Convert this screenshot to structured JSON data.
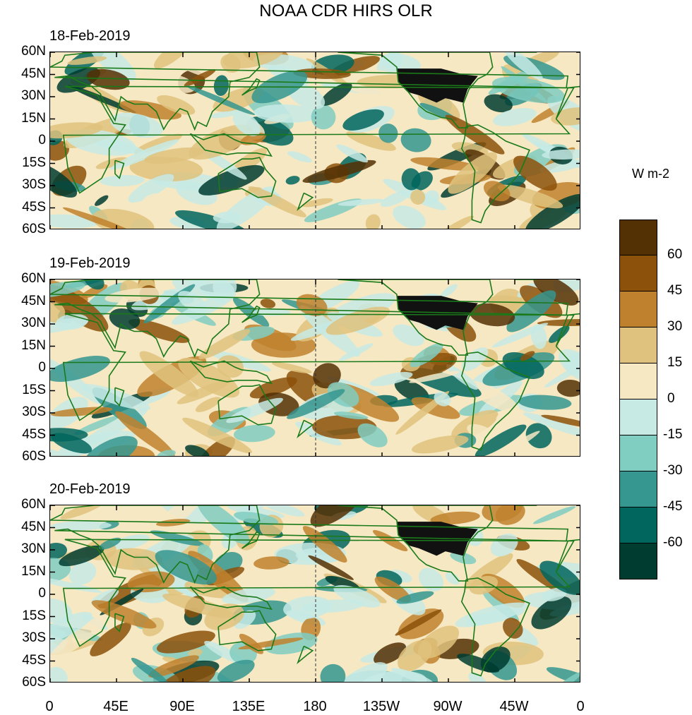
{
  "title": "NOAA CDR HIRS OLR",
  "panels": [
    {
      "date": "18-Feb-2019"
    },
    {
      "date": "19-Feb-2019"
    },
    {
      "date": "20-Feb-2019"
    }
  ],
  "lat_labels": [
    "60N",
    "45N",
    "30N",
    "15N",
    "0",
    "15S",
    "30S",
    "45S",
    "60S"
  ],
  "lon_labels": [
    "0",
    "45E",
    "90E",
    "135E",
    "180",
    "135W",
    "90W",
    "45W",
    "0"
  ],
  "colorbar": {
    "title": "W m-2",
    "levels": [
      "60",
      "45",
      "30",
      "15",
      "0",
      "-15",
      "-30",
      "-45",
      "-60"
    ],
    "colors": [
      "#543005",
      "#8c510a",
      "#bf812d",
      "#dfc27d",
      "#f6e8c3",
      "#c7eae5",
      "#80cdc1",
      "#35978f",
      "#01665e",
      "#003c30"
    ]
  },
  "palette": {
    "coast": "#1a7a1a",
    "usa_mask": "#111111"
  }
}
